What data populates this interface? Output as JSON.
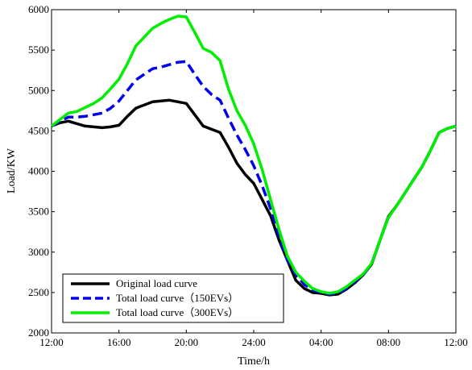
{
  "chart_data": {
    "type": "line",
    "title": "",
    "xlabel": "Time/h",
    "ylabel": "Load/KW",
    "xlim": [
      0,
      24
    ],
    "ylim": [
      2000,
      6000
    ],
    "x_ticks": [
      0,
      4,
      8,
      12,
      16,
      20,
      24
    ],
    "x_tick_labels": [
      "12:00",
      "16:00",
      "20:00",
      "24:00",
      "04:00",
      "08:00",
      "12:00"
    ],
    "y_ticks": [
      2000,
      2500,
      3000,
      3500,
      4000,
      4500,
      5000,
      5500,
      6000
    ],
    "y_tick_labels": [
      "2000",
      "2500",
      "3000",
      "3500",
      "4000",
      "4500",
      "5000",
      "5500",
      "6000"
    ],
    "grid": false,
    "legend_position": "bottom-left",
    "x": [
      0,
      0.5,
      1,
      1.5,
      2,
      2.5,
      3,
      3.5,
      4,
      4.5,
      5,
      5.5,
      6,
      6.5,
      7,
      7.5,
      8,
      8.5,
      9,
      9.5,
      10,
      10.5,
      11,
      11.5,
      12,
      12.5,
      13,
      13.5,
      14,
      14.5,
      15,
      15.5,
      16,
      16.5,
      17,
      17.5,
      18,
      18.5,
      19,
      19.5,
      20,
      20.5,
      21,
      21.5,
      22,
      22.5,
      23,
      23.5,
      24
    ],
    "series": [
      {
        "name": "Original load curve",
        "color": "#000000",
        "dash": "solid",
        "values": [
          4560,
          4600,
          4620,
          4590,
          4560,
          4550,
          4540,
          4550,
          4570,
          4680,
          4780,
          4820,
          4860,
          4870,
          4880,
          4860,
          4840,
          4700,
          4560,
          4520,
          4480,
          4300,
          4100,
          3960,
          3850,
          3650,
          3450,
          3150,
          2900,
          2650,
          2550,
          2500,
          2490,
          2470,
          2480,
          2540,
          2620,
          2720,
          2850,
          3150,
          3440,
          3580,
          3740,
          3900,
          4060,
          4260,
          4480,
          4530,
          4560
        ]
      },
      {
        "name": "Total load curve（150EVs）",
        "color": "#0000ee",
        "dash": "dashed",
        "values": [
          4560,
          4620,
          4670,
          4670,
          4680,
          4700,
          4720,
          4780,
          4870,
          5000,
          5130,
          5200,
          5270,
          5290,
          5320,
          5350,
          5360,
          5200,
          5050,
          4950,
          4880,
          4660,
          4450,
          4270,
          4070,
          3820,
          3540,
          3200,
          2900,
          2720,
          2600,
          2530,
          2500,
          2480,
          2490,
          2550,
          2630,
          2720,
          2860,
          3150,
          3430,
          3580,
          3740,
          3900,
          4060,
          4260,
          4480,
          4530,
          4560
        ]
      },
      {
        "name": "Total load curve（300EVs）",
        "color": "#00ee00",
        "dash": "solid",
        "values": [
          4560,
          4640,
          4720,
          4740,
          4790,
          4840,
          4910,
          5020,
          5140,
          5330,
          5550,
          5660,
          5770,
          5830,
          5880,
          5920,
          5910,
          5720,
          5520,
          5470,
          5370,
          5020,
          4750,
          4570,
          4340,
          4020,
          3650,
          3280,
          2950,
          2750,
          2640,
          2550,
          2510,
          2490,
          2510,
          2570,
          2650,
          2730,
          2860,
          3150,
          3430,
          3580,
          3740,
          3900,
          4060,
          4260,
          4480,
          4530,
          4560
        ]
      }
    ]
  }
}
